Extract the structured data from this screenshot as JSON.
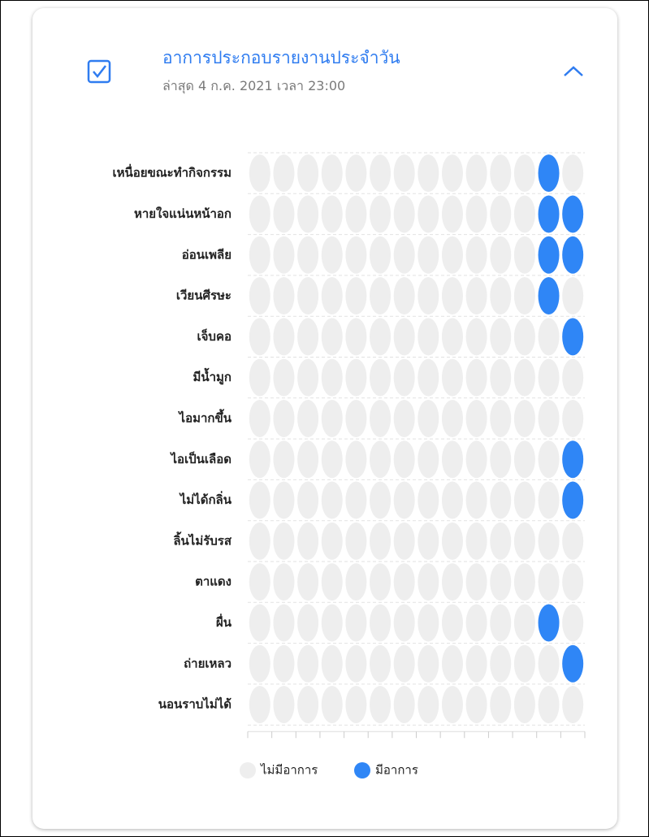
{
  "header": {
    "title": "อาการประกอบรายงานประจำวัน",
    "subtitle": "ล่าสุด 4 ก.ค. 2021 เวลา 23:00"
  },
  "chart_data": {
    "type": "matrix",
    "rows": [
      "เหนื่อยขณะทำกิจกรรม",
      "หายใจแน่นหน้าอก",
      "อ่อนเพลีย",
      "เวียนศีรษะ",
      "เจ็บคอ",
      "มีน้ำมูก",
      "ไอมากขึ้น",
      "ไอเป็นเลือด",
      "ไม่ได้กลิ่น",
      "ลิ้นไม่รับรส",
      "ตาแดง",
      "ผื่น",
      "ถ่ายเหลว",
      "นอนราบไม่ได้"
    ],
    "values": [
      [
        0,
        0,
        0,
        0,
        0,
        0,
        0,
        0,
        0,
        0,
        0,
        0,
        1,
        0
      ],
      [
        0,
        0,
        0,
        0,
        0,
        0,
        0,
        0,
        0,
        0,
        0,
        0,
        1,
        1
      ],
      [
        0,
        0,
        0,
        0,
        0,
        0,
        0,
        0,
        0,
        0,
        0,
        0,
        1,
        1
      ],
      [
        0,
        0,
        0,
        0,
        0,
        0,
        0,
        0,
        0,
        0,
        0,
        0,
        1,
        0
      ],
      [
        0,
        0,
        0,
        0,
        0,
        0,
        0,
        0,
        0,
        0,
        0,
        0,
        0,
        1
      ],
      [
        0,
        0,
        0,
        0,
        0,
        0,
        0,
        0,
        0,
        0,
        0,
        0,
        0,
        0
      ],
      [
        0,
        0,
        0,
        0,
        0,
        0,
        0,
        0,
        0,
        0,
        0,
        0,
        0,
        0
      ],
      [
        0,
        0,
        0,
        0,
        0,
        0,
        0,
        0,
        0,
        0,
        0,
        0,
        0,
        1
      ],
      [
        0,
        0,
        0,
        0,
        0,
        0,
        0,
        0,
        0,
        0,
        0,
        0,
        0,
        1
      ],
      [
        0,
        0,
        0,
        0,
        0,
        0,
        0,
        0,
        0,
        0,
        0,
        0,
        0,
        0
      ],
      [
        0,
        0,
        0,
        0,
        0,
        0,
        0,
        0,
        0,
        0,
        0,
        0,
        0,
        0
      ],
      [
        0,
        0,
        0,
        0,
        0,
        0,
        0,
        0,
        0,
        0,
        0,
        0,
        1,
        0
      ],
      [
        0,
        0,
        0,
        0,
        0,
        0,
        0,
        0,
        0,
        0,
        0,
        0,
        0,
        1
      ],
      [
        0,
        0,
        0,
        0,
        0,
        0,
        0,
        0,
        0,
        0,
        0,
        0,
        0,
        0
      ]
    ],
    "series": [
      {
        "name": "ไม่มีอาการ",
        "color": "#eeeeee"
      },
      {
        "name": "มีอาการ",
        "color": "#2f86f6"
      }
    ]
  }
}
